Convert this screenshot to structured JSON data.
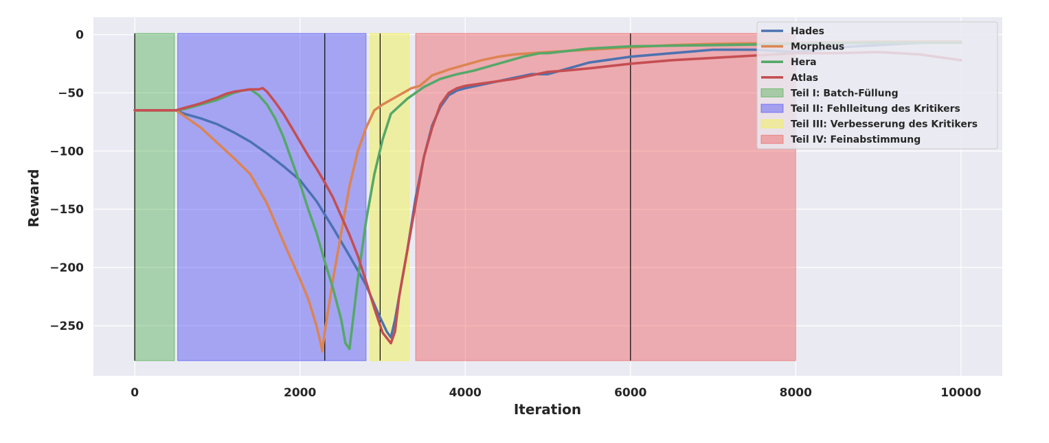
{
  "chart_data": {
    "type": "line",
    "xlabel": "Iteration",
    "ylabel": "Reward",
    "xlim": [
      -500,
      10500
    ],
    "ylim": [
      -293,
      15
    ],
    "xticks": [
      0,
      2000,
      4000,
      6000,
      8000,
      10000
    ],
    "yticks": [
      0,
      -50,
      -100,
      -150,
      -200,
      -250
    ],
    "xtick_labels": [
      "0",
      "2000",
      "4000",
      "6000",
      "8000",
      "10000"
    ],
    "ytick_labels": [
      "0",
      "−50",
      "−100",
      "−150",
      "−200",
      "−250"
    ],
    "grid": true,
    "legend_position": "top-right",
    "regions": [
      {
        "name": "Teil I: Batch-Füllung",
        "x_start": 0,
        "x_end": 480,
        "y_start": -280,
        "y_end": 1,
        "color": "#2ca02c",
        "opacity": 0.35
      },
      {
        "name": "Teil II: Fehlleitung des Kritikers",
        "x_start": 520,
        "x_end": 2800,
        "y_start": -280,
        "y_end": 1,
        "color": "#4f4ff5",
        "opacity": 0.45
      },
      {
        "name": "Teil III: Verbesserung des Kritikers",
        "x_start": 2850,
        "x_end": 3320,
        "y_start": -280,
        "y_end": 1,
        "color": "#f0f060",
        "opacity": 0.55
      },
      {
        "name": "Teil IV: Feinabstimmung",
        "x_start": 3400,
        "x_end": 8000,
        "y_start": -280,
        "y_end": 1,
        "color": "#f06060",
        "opacity": 0.45
      }
    ],
    "vlines": [
      0,
      2300,
      2970,
      6000
    ],
    "series": [
      {
        "name": "Hades",
        "color": "#4c72b0",
        "x": [
          0,
          500,
          600,
          800,
          1000,
          1200,
          1400,
          1600,
          1800,
          2000,
          2200,
          2400,
          2600,
          2800,
          2950,
          3050,
          3100,
          3150,
          3200,
          3300,
          3400,
          3500,
          3600,
          3700,
          3800,
          3900,
          4000,
          4200,
          4400,
          4600,
          4800,
          5000,
          5200,
          5500,
          6000,
          6500,
          7000,
          7500,
          8000,
          8500,
          9000,
          9500,
          10000
        ],
        "y": [
          -65,
          -65,
          -68,
          -72,
          -77,
          -84,
          -92,
          -102,
          -113,
          -125,
          -143,
          -166,
          -190,
          -215,
          -240,
          -255,
          -260,
          -245,
          -225,
          -185,
          -140,
          -105,
          -78,
          -62,
          -52,
          -48,
          -46,
          -43,
          -40,
          -37,
          -34,
          -34,
          -30,
          -24,
          -19,
          -16,
          -13,
          -13,
          -15,
          -11,
          -9,
          -7,
          -6
        ]
      },
      {
        "name": "Morpheus",
        "color": "#dd8452",
        "x": [
          0,
          500,
          600,
          800,
          1000,
          1200,
          1400,
          1600,
          1800,
          2000,
          2100,
          2200,
          2250,
          2270,
          2300,
          2400,
          2500,
          2600,
          2700,
          2800,
          2900,
          3000,
          3200,
          3350,
          3450,
          3600,
          3800,
          4000,
          4200,
          4400,
          4600,
          4800,
          5000,
          5500,
          6000,
          6500,
          7000,
          8000,
          9000,
          10000
        ],
        "y": [
          -65,
          -65,
          -70,
          -80,
          -93,
          -106,
          -120,
          -145,
          -178,
          -210,
          -227,
          -250,
          -265,
          -272,
          -255,
          -210,
          -170,
          -130,
          -100,
          -80,
          -65,
          -60,
          -52,
          -46,
          -44,
          -35,
          -30,
          -26,
          -22,
          -19,
          -17,
          -16,
          -15,
          -13,
          -11,
          -9,
          -8,
          -7,
          -6,
          -6
        ]
      },
      {
        "name": "Hera",
        "color": "#55a868",
        "x": [
          0,
          500,
          600,
          800,
          1000,
          1200,
          1300,
          1400,
          1500,
          1600,
          1700,
          1800,
          1900,
          2000,
          2100,
          2200,
          2300,
          2400,
          2500,
          2550,
          2600,
          2700,
          2800,
          2900,
          3000,
          3100,
          3300,
          3500,
          3700,
          3900,
          4100,
          4300,
          4500,
          4700,
          4900,
          5000,
          5500,
          6000,
          7000,
          8000,
          9000,
          10000
        ],
        "y": [
          -65,
          -65,
          -64,
          -60,
          -56,
          -50,
          -48,
          -47,
          -52,
          -60,
          -72,
          -88,
          -108,
          -128,
          -150,
          -170,
          -195,
          -218,
          -245,
          -265,
          -270,
          -210,
          -160,
          -120,
          -90,
          -68,
          -55,
          -45,
          -38,
          -34,
          -31,
          -27,
          -23,
          -19,
          -16,
          -16,
          -12,
          -10,
          -9,
          -8,
          -7,
          -7
        ]
      },
      {
        "name": "Atlas",
        "color": "#c44e52",
        "x": [
          0,
          500,
          600,
          800,
          1000,
          1100,
          1200,
          1300,
          1400,
          1500,
          1550,
          1600,
          1700,
          1800,
          1900,
          2000,
          2100,
          2200,
          2300,
          2400,
          2500,
          2600,
          2700,
          2800,
          2900,
          3000,
          3100,
          3150,
          3200,
          3300,
          3400,
          3500,
          3600,
          3700,
          3800,
          3900,
          4000,
          4200,
          4400,
          4600,
          4800,
          5000,
          5200,
          5500,
          6000,
          6500,
          7000,
          7500,
          8000,
          8500,
          9000,
          9500,
          10000
        ],
        "y": [
          -65,
          -65,
          -63,
          -59,
          -54,
          -51,
          -49,
          -48,
          -47,
          -47,
          -46,
          -49,
          -58,
          -68,
          -80,
          -92,
          -104,
          -115,
          -127,
          -140,
          -156,
          -172,
          -190,
          -212,
          -235,
          -256,
          -265,
          -255,
          -225,
          -185,
          -145,
          -105,
          -80,
          -60,
          -50,
          -46,
          -44,
          -42,
          -40,
          -38,
          -35,
          -32,
          -31,
          -29,
          -25,
          -22,
          -20,
          -18,
          -16,
          -16,
          -15,
          -17,
          -22
        ]
      }
    ]
  }
}
